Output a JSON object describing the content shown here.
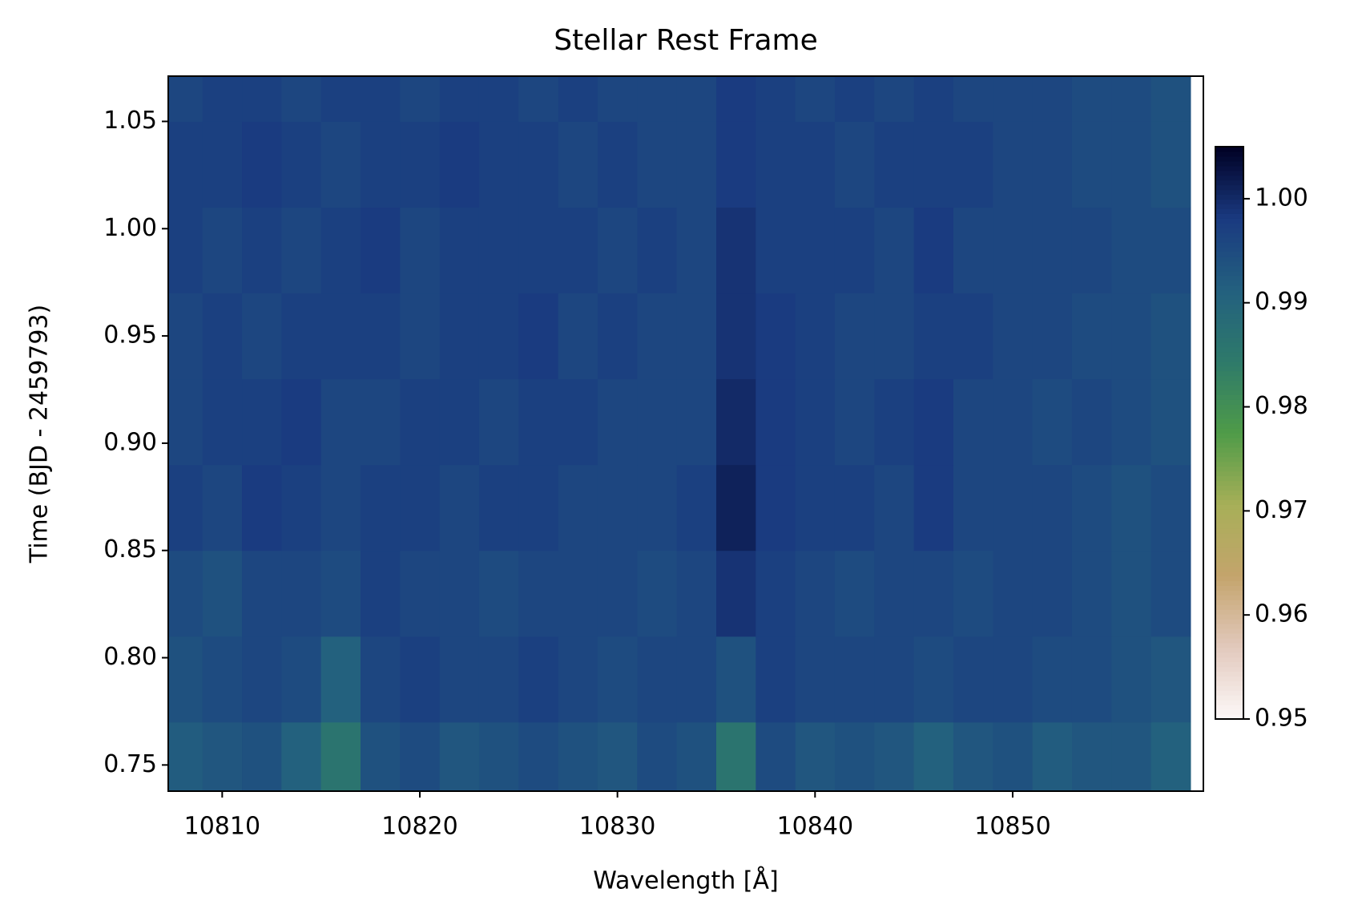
{
  "chart_data": {
    "type": "heatmap",
    "title": "Stellar Rest Frame",
    "x_label": "Wavelength [Å]",
    "y_label": "Time (BJD - 2459793)",
    "x": [
      10808,
      10810,
      10812,
      10814,
      10816,
      10818,
      10820,
      10822,
      10824,
      10826,
      10828,
      10830,
      10832,
      10834,
      10836,
      10838,
      10840,
      10842,
      10844,
      10846,
      10848,
      10850,
      10852,
      10854,
      10856,
      10858
    ],
    "y": [
      0.75,
      0.79,
      0.83,
      0.87,
      0.91,
      0.95,
      0.99,
      1.03,
      1.07
    ],
    "z": [
      [
        0.992,
        0.993,
        0.994,
        0.991,
        0.986,
        0.994,
        0.995,
        0.993,
        0.994,
        0.995,
        0.994,
        0.993,
        0.995,
        0.994,
        0.986,
        0.995,
        0.993,
        0.994,
        0.993,
        0.991,
        0.993,
        0.994,
        0.992,
        0.993,
        0.993,
        0.991
      ],
      [
        0.994,
        0.995,
        0.996,
        0.995,
        0.991,
        0.996,
        0.997,
        0.996,
        0.996,
        0.997,
        0.996,
        0.995,
        0.996,
        0.996,
        0.994,
        0.997,
        0.996,
        0.996,
        0.996,
        0.995,
        0.996,
        0.996,
        0.995,
        0.995,
        0.994,
        0.993
      ],
      [
        0.995,
        0.994,
        0.996,
        0.996,
        0.995,
        0.997,
        0.996,
        0.996,
        0.995,
        0.996,
        0.996,
        0.996,
        0.995,
        0.996,
        0.999,
        0.997,
        0.996,
        0.995,
        0.996,
        0.996,
        0.995,
        0.996,
        0.996,
        0.995,
        0.994,
        0.995
      ],
      [
        0.997,
        0.996,
        0.998,
        0.997,
        0.996,
        0.997,
        0.997,
        0.996,
        0.997,
        0.997,
        0.996,
        0.996,
        0.996,
        0.997,
        1.001,
        0.998,
        0.997,
        0.997,
        0.996,
        0.998,
        0.996,
        0.996,
        0.996,
        0.995,
        0.994,
        0.995
      ],
      [
        0.996,
        0.997,
        0.997,
        0.998,
        0.996,
        0.996,
        0.997,
        0.997,
        0.996,
        0.997,
        0.997,
        0.996,
        0.996,
        0.996,
        1.0,
        0.998,
        0.997,
        0.996,
        0.997,
        0.998,
        0.996,
        0.996,
        0.995,
        0.996,
        0.995,
        0.994
      ],
      [
        0.996,
        0.997,
        0.996,
        0.997,
        0.997,
        0.997,
        0.996,
        0.997,
        0.997,
        0.998,
        0.996,
        0.997,
        0.996,
        0.996,
        0.999,
        0.998,
        0.997,
        0.996,
        0.996,
        0.997,
        0.997,
        0.996,
        0.996,
        0.995,
        0.995,
        0.994
      ],
      [
        0.997,
        0.996,
        0.997,
        0.996,
        0.997,
        0.998,
        0.996,
        0.997,
        0.997,
        0.997,
        0.997,
        0.996,
        0.997,
        0.996,
        0.999,
        0.997,
        0.997,
        0.997,
        0.996,
        0.998,
        0.996,
        0.996,
        0.996,
        0.996,
        0.995,
        0.995
      ],
      [
        0.997,
        0.997,
        0.998,
        0.997,
        0.996,
        0.997,
        0.997,
        0.998,
        0.997,
        0.997,
        0.996,
        0.997,
        0.996,
        0.996,
        0.998,
        0.997,
        0.997,
        0.996,
        0.997,
        0.997,
        0.997,
        0.996,
        0.996,
        0.995,
        0.995,
        0.994
      ],
      [
        0.996,
        0.997,
        0.997,
        0.996,
        0.997,
        0.997,
        0.996,
        0.997,
        0.997,
        0.996,
        0.997,
        0.996,
        0.996,
        0.996,
        0.998,
        0.997,
        0.996,
        0.997,
        0.996,
        0.997,
        0.996,
        0.996,
        0.996,
        0.995,
        0.995,
        0.994
      ]
    ],
    "xlim": [
      10807.27,
      10859.65
    ],
    "ylim": [
      0.7378,
      1.0711
    ],
    "xticks": [
      10810,
      10820,
      10830,
      10840,
      10850
    ],
    "yticks": [
      0.75,
      {
        "value": 0.8,
        "label": "0.80"
      },
      0.85,
      {
        "value": 0.9,
        "label": "0.90"
      },
      0.95,
      {
        "value": 1.0,
        "label": "1.00"
      },
      1.05
    ],
    "clim": [
      0.95,
      1.005
    ],
    "cticks": [
      0.95,
      0.96,
      0.97,
      0.98,
      0.99,
      {
        "value": 1.0,
        "label": "1.00"
      }
    ],
    "colormap": [
      "#fdf9f9",
      "#e2c9bd",
      "#c4a46c",
      "#a7af58",
      "#4f9b48",
      "#2e7a6a",
      "#23607f",
      "#1a3a80",
      "#000024"
    ]
  }
}
